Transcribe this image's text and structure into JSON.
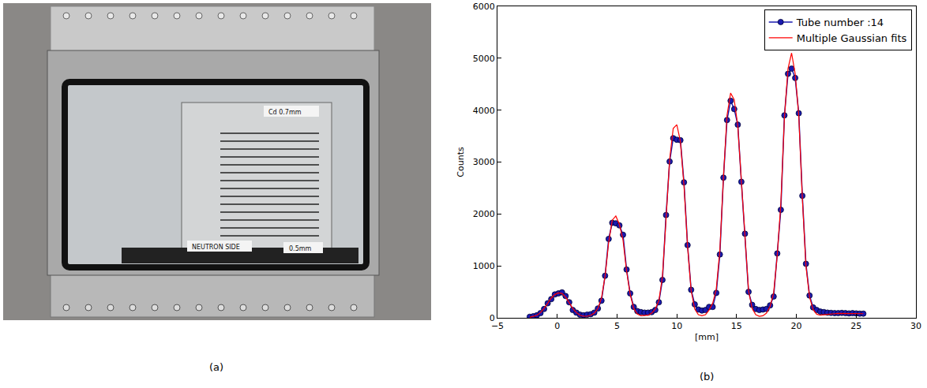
{
  "panels": [
    {
      "label": "(a)",
      "kind": "photo",
      "texts": [
        "NEUTRON SIDE",
        "Cd 0.7mm",
        "0.5mm"
      ]
    },
    {
      "label": "(b)"
    }
  ],
  "chart_data": {
    "type": "line",
    "xlabel": "[mm]",
    "ylabel": "Counts",
    "x": [
      -2.3,
      -2.0,
      -1.7,
      -1.4,
      -1.1,
      -0.8,
      -0.5,
      -0.2,
      0.1,
      0.4,
      0.7,
      1.0,
      1.3,
      1.6,
      1.9,
      2.2,
      2.5,
      2.8,
      3.1,
      3.4,
      3.7,
      4.0,
      4.3,
      4.6,
      4.9,
      5.2,
      5.5,
      5.8,
      6.1,
      6.4,
      6.7,
      7.0,
      7.3,
      7.6,
      7.9,
      8.2,
      8.5,
      8.8,
      9.1,
      9.4,
      9.7,
      10.0,
      10.3,
      10.6,
      10.9,
      11.2,
      11.5,
      11.8,
      12.1,
      12.4,
      12.7,
      13.0,
      13.3,
      13.6,
      13.9,
      14.2,
      14.5,
      14.8,
      15.1,
      15.4,
      15.7,
      16.0,
      16.3,
      16.6,
      16.9,
      17.2,
      17.5,
      17.8,
      18.1,
      18.4,
      18.7,
      19.0,
      19.3,
      19.6,
      19.9,
      20.2,
      20.5,
      20.8,
      21.1,
      21.4,
      21.7,
      22.0,
      22.3,
      22.6,
      22.9,
      23.2,
      23.5,
      23.8,
      24.1,
      24.4,
      24.7,
      25.0,
      25.3,
      25.6
    ],
    "series": [
      {
        "name": "Tube number :14",
        "color": "#1a1ab0",
        "marker": "circle",
        "line_style": "solid",
        "values": [
          20,
          30,
          50,
          90,
          170,
          280,
          360,
          450,
          470,
          490,
          420,
          300,
          150,
          100,
          60,
          50,
          60,
          70,
          100,
          180,
          330,
          810,
          1520,
          1830,
          1820,
          1780,
          1600,
          930,
          470,
          210,
          130,
          110,
          100,
          100,
          110,
          150,
          300,
          730,
          1980,
          3010,
          3460,
          3430,
          3420,
          2610,
          1400,
          540,
          260,
          160,
          140,
          150,
          210,
          210,
          480,
          1220,
          2700,
          3810,
          4180,
          4020,
          3720,
          2620,
          1620,
          500,
          250,
          170,
          150,
          160,
          170,
          240,
          410,
          1240,
          2080,
          3900,
          4700,
          4800,
          4620,
          3940,
          2350,
          1040,
          430,
          200,
          150,
          120,
          110,
          100,
          95,
          90,
          90,
          95,
          90,
          85,
          90,
          85,
          80,
          80
        ]
      },
      {
        "name": "Multiple Gaussian fits",
        "color": "#ff0000",
        "marker": "none",
        "line_style": "solid",
        "values": [
          10,
          25,
          50,
          100,
          180,
          280,
          380,
          450,
          480,
          470,
          400,
          290,
          180,
          100,
          50,
          30,
          30,
          50,
          90,
          180,
          380,
          800,
          1450,
          1880,
          1960,
          1800,
          1500,
          900,
          450,
          180,
          70,
          40,
          40,
          50,
          90,
          170,
          330,
          800,
          1900,
          3050,
          3650,
          3720,
          3400,
          2550,
          1380,
          520,
          170,
          60,
          40,
          60,
          150,
          280,
          550,
          1300,
          2700,
          3900,
          4330,
          4200,
          3700,
          2600,
          1550,
          520,
          180,
          60,
          30,
          40,
          90,
          220,
          480,
          1200,
          2200,
          3850,
          4800,
          5100,
          4700,
          3900,
          2300,
          1000,
          400,
          160,
          70,
          50,
          60,
          70,
          80,
          80,
          85,
          85,
          85,
          80,
          80,
          80,
          80,
          80
        ]
      }
    ],
    "xlim": [
      -5,
      30
    ],
    "xticks": [
      {
        "value": -5,
        "label": "−5"
      },
      0,
      5,
      10,
      15,
      20,
      25,
      30
    ],
    "ylim": [
      0,
      6000
    ],
    "yticks": [
      0,
      1000,
      2000,
      3000,
      4000,
      5000,
      6000
    ],
    "grid": false,
    "legend": "upper right"
  }
}
